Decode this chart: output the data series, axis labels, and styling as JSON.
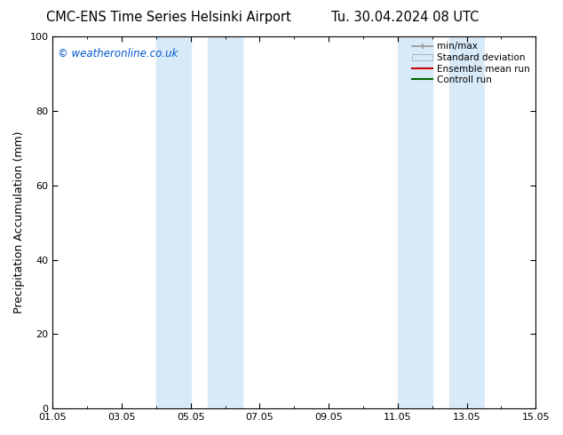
{
  "title_left": "CMC-ENS Time Series Helsinki Airport",
  "title_right": "Tu. 30.04.2024 08 UTC",
  "ylabel": "Precipitation Accumulation (mm)",
  "watermark": "© weatheronline.co.uk",
  "watermark_color": "#0055cc",
  "ylim": [
    0,
    100
  ],
  "background_color": "#ffffff",
  "plot_bg_color": "#ffffff",
  "shade_color": "#d8eaf8",
  "x_tick_labels": [
    "01.05",
    "03.05",
    "05.05",
    "07.05",
    "09.05",
    "11.05",
    "13.05",
    "15.05"
  ],
  "x_tick_positions": [
    0,
    2,
    4,
    6,
    8,
    10,
    12,
    14
  ],
  "shaded_regions": [
    [
      3.0,
      4.0
    ],
    [
      4.5,
      5.5
    ],
    [
      10.0,
      11.0
    ],
    [
      11.5,
      12.5
    ]
  ],
  "legend_labels": [
    "min/max",
    "Standard deviation",
    "Ensemble mean run",
    "Controll run"
  ],
  "yticks": [
    0,
    20,
    40,
    60,
    80,
    100
  ],
  "title_fontsize": 10.5,
  "label_fontsize": 9,
  "tick_fontsize": 8,
  "watermark_fontsize": 8.5,
  "legend_fontsize": 7.5
}
